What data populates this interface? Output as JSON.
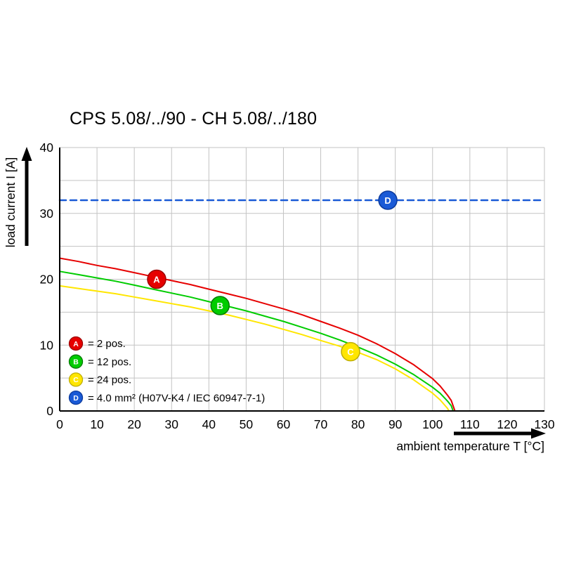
{
  "title": "CPS 5.08/../90 - CH 5.08/../180",
  "chart_data": {
    "type": "line",
    "title": "CPS 5.08/../90 - CH 5.08/../180",
    "xlabel": "ambient temperature T [°C]",
    "ylabel": "load current I [A]",
    "xlim": [
      0,
      130
    ],
    "ylim": [
      0,
      40
    ],
    "x_ticks": [
      0,
      10,
      20,
      30,
      40,
      50,
      60,
      70,
      80,
      90,
      100,
      110,
      120,
      130
    ],
    "y_ticks": [
      0,
      10,
      20,
      30,
      40
    ],
    "y_grid_step": 5,
    "grid": true,
    "grid_color": "#c3c3c3",
    "axis_color": "#000000",
    "legend_position": "lower-left",
    "series": [
      {
        "id": "A",
        "label": "2 pos.",
        "color": "#e60000",
        "edge_color": "#9c0000",
        "style": "solid",
        "marker_at": [
          26,
          20
        ],
        "points": [
          [
            0,
            23.2
          ],
          [
            5,
            22.7
          ],
          [
            10,
            22.1
          ],
          [
            15,
            21.6
          ],
          [
            20,
            21.0
          ],
          [
            25,
            20.4
          ],
          [
            30,
            19.8
          ],
          [
            35,
            19.2
          ],
          [
            40,
            18.5
          ],
          [
            45,
            17.8
          ],
          [
            50,
            17.1
          ],
          [
            55,
            16.3
          ],
          [
            60,
            15.5
          ],
          [
            65,
            14.6
          ],
          [
            70,
            13.6
          ],
          [
            75,
            12.6
          ],
          [
            80,
            11.5
          ],
          [
            85,
            10.2
          ],
          [
            90,
            8.7
          ],
          [
            95,
            7.0
          ],
          [
            100,
            4.9
          ],
          [
            102,
            3.8
          ],
          [
            104,
            2.4
          ],
          [
            105,
            1.6
          ],
          [
            106,
            0
          ]
        ]
      },
      {
        "id": "B",
        "label": "12 pos.",
        "color": "#00cc00",
        "edge_color": "#007a00",
        "style": "solid",
        "marker_at": [
          43,
          16
        ],
        "points": [
          [
            0,
            21.2
          ],
          [
            5,
            20.7
          ],
          [
            10,
            20.2
          ],
          [
            15,
            19.7
          ],
          [
            20,
            19.1
          ],
          [
            25,
            18.5
          ],
          [
            30,
            17.9
          ],
          [
            35,
            17.3
          ],
          [
            40,
            16.6
          ],
          [
            45,
            15.9
          ],
          [
            50,
            15.2
          ],
          [
            55,
            14.4
          ],
          [
            60,
            13.6
          ],
          [
            65,
            12.7
          ],
          [
            70,
            11.8
          ],
          [
            75,
            10.8
          ],
          [
            80,
            9.7
          ],
          [
            85,
            8.5
          ],
          [
            90,
            7.1
          ],
          [
            95,
            5.5
          ],
          [
            100,
            3.6
          ],
          [
            102,
            2.7
          ],
          [
            104,
            1.5
          ],
          [
            105,
            0.8
          ],
          [
            105.5,
            0
          ]
        ]
      },
      {
        "id": "C",
        "label": "24 pos.",
        "color": "#ffe600",
        "edge_color": "#bfae00",
        "style": "solid",
        "marker_at": [
          78,
          9
        ],
        "points": [
          [
            0,
            19.0
          ],
          [
            5,
            18.6
          ],
          [
            10,
            18.2
          ],
          [
            15,
            17.8
          ],
          [
            20,
            17.3
          ],
          [
            25,
            16.8
          ],
          [
            30,
            16.3
          ],
          [
            35,
            15.8
          ],
          [
            40,
            15.2
          ],
          [
            45,
            14.6
          ],
          [
            50,
            13.9
          ],
          [
            55,
            13.2
          ],
          [
            60,
            12.4
          ],
          [
            65,
            11.6
          ],
          [
            70,
            10.7
          ],
          [
            75,
            9.85
          ],
          [
            80,
            8.9
          ],
          [
            85,
            7.8
          ],
          [
            90,
            6.4
          ],
          [
            95,
            4.7
          ],
          [
            100,
            2.7
          ],
          [
            102,
            1.7
          ],
          [
            104,
            0.4
          ],
          [
            104.4,
            0
          ]
        ]
      },
      {
        "id": "D",
        "label": "4.0 mm² (H07V-K4 / IEC 60947-7-1)",
        "color": "#1a5ad6",
        "edge_color": "#0b3a9c",
        "style": "dashed",
        "marker_at": [
          88,
          32
        ],
        "points": [
          [
            0,
            32
          ],
          [
            130,
            32
          ]
        ]
      }
    ],
    "legend": [
      {
        "id": "A",
        "label": "= 2 pos."
      },
      {
        "id": "B",
        "label": "= 12 pos."
      },
      {
        "id": "C",
        "label": "= 24 pos."
      },
      {
        "id": "D",
        "label": "= 4.0 mm² (H07V-K4 / IEC 60947-7-1)"
      }
    ]
  }
}
